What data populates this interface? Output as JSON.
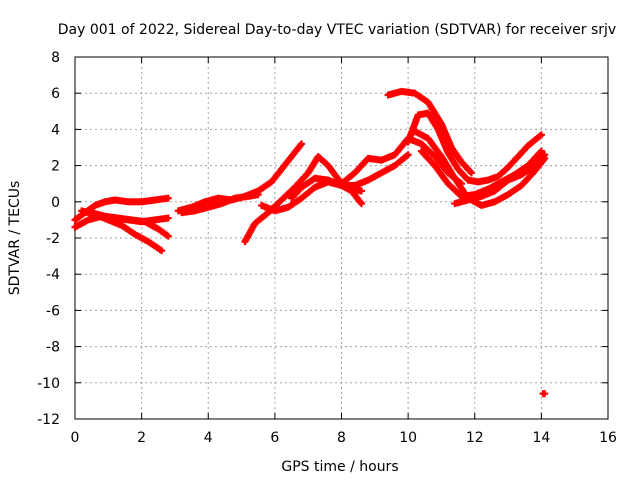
{
  "chart_data": {
    "type": "scatter",
    "title": "Day 001 of 2022, Sidereal Day-to-day VTEC variation (SDTVAR) for receiver srjv",
    "xlabel": "GPS time / hours",
    "ylabel": "SDTVAR / TECUs",
    "xlim": [
      0,
      16
    ],
    "ylim": [
      -12,
      8
    ],
    "xticks": [
      "0",
      "2",
      "4",
      "6",
      "8",
      "10",
      "12",
      "14",
      "16"
    ],
    "yticks": [
      "8",
      "6",
      "4",
      "2",
      "0",
      "-2",
      "-4",
      "-6",
      "-8",
      "-10",
      "-12"
    ],
    "grid": true,
    "marker": "plus",
    "color": "#ff0000",
    "series": [
      {
        "name": "s1",
        "x": [
          0.0,
          0.3,
          0.6,
          0.9,
          1.2,
          1.6,
          2.0,
          2.4,
          2.8
        ],
        "y": [
          -1.0,
          -0.6,
          -0.2,
          0.0,
          0.1,
          0.0,
          0.0,
          0.1,
          0.2
        ]
      },
      {
        "name": "s2",
        "x": [
          0.0,
          0.4,
          0.8,
          1.2,
          1.6,
          2.0,
          2.4,
          2.8
        ],
        "y": [
          -1.4,
          -1.0,
          -0.8,
          -0.9,
          -1.0,
          -1.1,
          -1.0,
          -0.9
        ]
      },
      {
        "name": "s3",
        "x": [
          0.2,
          0.6,
          1.0,
          1.4,
          1.8,
          2.2,
          2.6
        ],
        "y": [
          -0.5,
          -0.7,
          -1.0,
          -1.3,
          -1.8,
          -2.2,
          -2.7
        ]
      },
      {
        "name": "s4",
        "x": [
          0.5,
          0.9,
          1.3,
          1.7,
          2.1,
          2.5,
          2.8
        ],
        "y": [
          -0.6,
          -0.8,
          -0.9,
          -1.0,
          -1.1,
          -1.5,
          -1.9
        ]
      },
      {
        "name": "s5",
        "x": [
          3.1,
          3.5,
          3.9,
          4.3,
          4.7,
          5.1,
          5.5,
          5.9,
          6.2,
          6.5,
          6.8
        ],
        "y": [
          -0.5,
          -0.3,
          0.0,
          0.2,
          0.1,
          0.3,
          0.6,
          1.1,
          1.8,
          2.5,
          3.2
        ]
      },
      {
        "name": "s6",
        "x": [
          3.2,
          3.6,
          4.0,
          4.4,
          4.8,
          5.2,
          5.5
        ],
        "y": [
          -0.6,
          -0.5,
          -0.3,
          -0.1,
          0.2,
          0.3,
          0.4
        ]
      },
      {
        "name": "s7",
        "x": [
          5.1,
          5.4,
          5.8,
          6.2,
          6.6,
          7.0,
          7.3,
          7.6,
          8.0,
          8.3,
          8.6
        ],
        "y": [
          -2.2,
          -1.2,
          -0.6,
          0.1,
          0.8,
          1.6,
          2.5,
          2.0,
          1.0,
          0.7,
          0.6
        ]
      },
      {
        "name": "s8",
        "x": [
          5.6,
          6.0,
          6.4,
          6.8,
          7.2,
          7.6,
          8.0,
          8.3,
          8.6
        ],
        "y": [
          -0.2,
          -0.5,
          -0.3,
          0.2,
          0.8,
          1.1,
          0.9,
          0.6,
          -0.1
        ]
      },
      {
        "name": "s9",
        "x": [
          6.5,
          6.8,
          7.2,
          7.6,
          8.0,
          8.4,
          8.8,
          9.2,
          9.6,
          10.0
        ],
        "y": [
          0.2,
          0.8,
          1.3,
          1.2,
          0.9,
          0.9,
          1.2,
          1.6,
          2.0,
          2.6
        ]
      },
      {
        "name": "s10",
        "x": [
          8.0,
          8.4,
          8.8,
          9.2,
          9.6,
          10.0,
          10.4,
          10.8,
          11.2,
          11.6
        ],
        "y": [
          1.0,
          1.6,
          2.4,
          2.3,
          2.6,
          3.5,
          3.2,
          2.5,
          1.6,
          1.0
        ]
      },
      {
        "name": "s11",
        "x": [
          9.4,
          9.8,
          10.2,
          10.6,
          11.0,
          11.3,
          11.6,
          11.9
        ],
        "y": [
          5.9,
          6.1,
          6.0,
          5.5,
          4.3,
          3.0,
          2.2,
          1.6
        ]
      },
      {
        "name": "s12",
        "x": [
          10.0,
          10.3,
          10.6,
          10.9,
          11.2,
          11.5,
          11.8,
          12.1,
          12.4,
          12.7,
          13.0,
          13.3,
          13.6,
          14.0
        ],
        "y": [
          3.3,
          4.8,
          4.9,
          4.0,
          2.7,
          1.8,
          1.2,
          1.1,
          1.2,
          1.4,
          1.9,
          2.5,
          3.1,
          3.7
        ]
      },
      {
        "name": "s13",
        "x": [
          10.2,
          10.6,
          11.0,
          11.4,
          11.8,
          12.2,
          12.6,
          13.0,
          13.4,
          13.8,
          14.1
        ],
        "y": [
          3.9,
          3.5,
          2.5,
          1.3,
          0.2,
          -0.2,
          0.0,
          0.4,
          0.9,
          1.7,
          2.4
        ]
      },
      {
        "name": "s14",
        "x": [
          10.4,
          10.8,
          11.2,
          11.6,
          12.0,
          12.4,
          12.8,
          13.2,
          13.6,
          14.0
        ],
        "y": [
          2.8,
          2.0,
          1.0,
          0.3,
          0.4,
          0.7,
          1.1,
          1.5,
          2.0,
          2.8
        ]
      },
      {
        "name": "s15",
        "x": [
          11.4,
          11.8,
          12.2,
          12.6,
          13.0,
          13.4,
          13.8,
          14.1
        ],
        "y": [
          -0.1,
          0.1,
          0.3,
          0.6,
          1.2,
          1.5,
          2.0,
          2.6
        ]
      },
      {
        "name": "outlier",
        "x": [
          14.05,
          14.1
        ],
        "y": [
          -10.6,
          -10.6
        ]
      }
    ]
  }
}
